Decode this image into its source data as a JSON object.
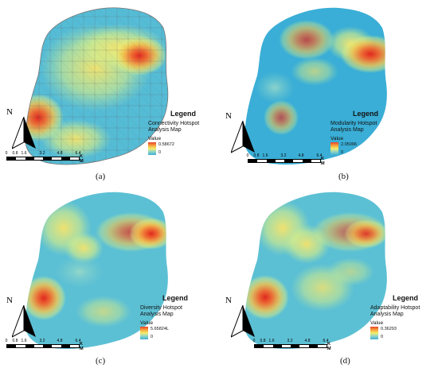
{
  "panels": [
    {
      "label": "(a)",
      "legend_title": "Legend",
      "legend_name": "Connectivity Hotspot Analysis Map",
      "value_label": "Value",
      "value_max": "0.58672",
      "value_min": "0"
    },
    {
      "label": "(b)",
      "legend_title": "Legend",
      "legend_name": "Modularity Hotspot Analysis Map",
      "value_label": "Value",
      "value_max": "2.05096",
      "value_min": "0"
    },
    {
      "label": "(c)",
      "legend_title": "Legend",
      "legend_name": "Diversity Hotspot Analysis Map",
      "value_label": "Value",
      "value_max": "5.65824L",
      "value_min": "0"
    },
    {
      "label": "(d)",
      "legend_title": "Legend",
      "legend_name": "Adaptability Hotspot Analysis Map",
      "value_label": "Value",
      "value_max": "0.36293",
      "value_min": "0"
    }
  ],
  "north_letter": "N",
  "scale": {
    "ticks": [
      "0",
      "0.8",
      "1.6",
      "3.2",
      "4.8",
      "6.4"
    ],
    "unit": "K M"
  },
  "colors": {
    "low": "#3fb0d0",
    "mid": "#f4ee6a",
    "high": "#e8432c"
  }
}
